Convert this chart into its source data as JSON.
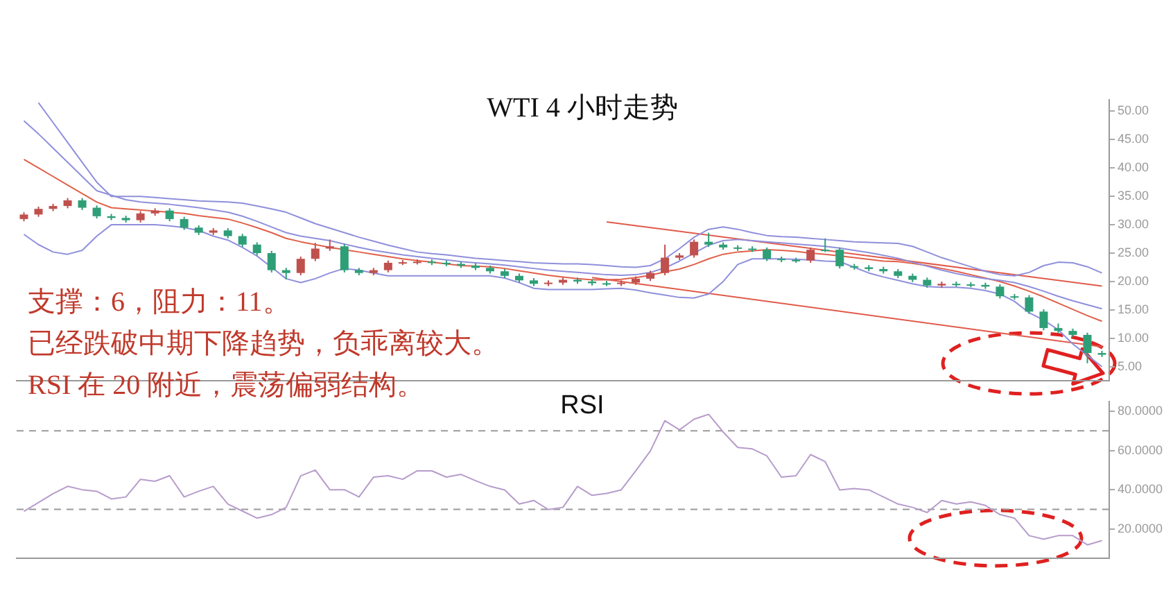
{
  "chart_data": [
    {
      "type": "candlestick",
      "title": "WTI 4 小时走势",
      "annotations": [
        "支撑：6，阻力：11。",
        "已经跌破中期下降趋势，负乖离较大。",
        "RSI 在 20 附近，震荡偏弱结构。"
      ],
      "categories": [
        null,
        null,
        null,
        null,
        null,
        null,
        null,
        null,
        null,
        null,
        null,
        null,
        null,
        null,
        null,
        null,
        null,
        null,
        null,
        null,
        null,
        null,
        null,
        null,
        null,
        null,
        null,
        null,
        null,
        null,
        null,
        null,
        null,
        null,
        null,
        null,
        null,
        null,
        null,
        null,
        null,
        null,
        null,
        null,
        null,
        null,
        null,
        null,
        null,
        null,
        null,
        null,
        null,
        null,
        null,
        null,
        null,
        null,
        null,
        null,
        null,
        null,
        null,
        null,
        null,
        null,
        null,
        null,
        null,
        null,
        null,
        null,
        null,
        null,
        null
      ],
      "ohlc": [
        [
          31,
          32.2,
          30.6,
          31.8
        ],
        [
          31.8,
          33.2,
          31.4,
          32.8
        ],
        [
          32.8,
          33.7,
          32.4,
          33.3
        ],
        [
          33.3,
          34.7,
          32.9,
          34.3
        ],
        [
          34.3,
          34.7,
          32.6,
          33
        ],
        [
          33,
          33.4,
          31.1,
          31.5
        ],
        [
          31.5,
          31.9,
          30.8,
          31.2
        ],
        [
          31.2,
          31.6,
          30.4,
          30.8
        ],
        [
          30.8,
          32.4,
          30.4,
          32
        ],
        [
          32,
          32.9,
          31.6,
          32.5
        ],
        [
          32.5,
          32.9,
          30.6,
          31
        ],
        [
          31,
          31.4,
          29.1,
          29.5
        ],
        [
          29.5,
          29.9,
          28.2,
          28.6
        ],
        [
          28.6,
          29.4,
          28.2,
          29
        ],
        [
          29,
          29.4,
          27.6,
          28
        ],
        [
          28,
          28.4,
          26.1,
          26.5
        ],
        [
          26.5,
          26.9,
          24.6,
          25
        ],
        [
          25,
          25.4,
          21.6,
          22
        ],
        [
          22,
          22.4,
          20.4,
          21.5
        ],
        [
          21.5,
          24.4,
          21.1,
          24
        ],
        [
          24,
          26.8,
          23.6,
          25.8
        ],
        [
          25.8,
          27.4,
          25.4,
          26.2
        ],
        [
          26.2,
          26.6,
          21.6,
          22
        ],
        [
          22,
          22.4,
          21.1,
          21.5
        ],
        [
          21.5,
          22.4,
          21.1,
          22
        ],
        [
          22,
          23.7,
          21.6,
          23.3
        ],
        [
          23.3,
          23.8,
          22.9,
          23.4
        ],
        [
          23.4,
          23.9,
          23,
          23.5
        ],
        [
          23.5,
          23.9,
          22.9,
          23.3
        ],
        [
          23.3,
          23.7,
          22.7,
          23.1
        ],
        [
          23.1,
          23.5,
          22.4,
          22.8
        ],
        [
          22.8,
          23.2,
          22,
          22.4
        ],
        [
          22.4,
          22.8,
          21.4,
          21.8
        ],
        [
          21.8,
          22.2,
          20.6,
          21
        ],
        [
          21,
          21.4,
          19.8,
          20.2
        ],
        [
          20.2,
          20.6,
          19.2,
          19.6
        ],
        [
          19.6,
          20.2,
          19.2,
          19.8
        ],
        [
          19.8,
          20.7,
          19.4,
          20.3
        ],
        [
          20.3,
          20.7,
          19.6,
          20
        ],
        [
          20,
          20.4,
          19.3,
          19.7
        ],
        [
          19.7,
          20.1,
          19.2,
          19.6
        ],
        [
          19.6,
          20.2,
          19.2,
          19.8
        ],
        [
          19.8,
          20.9,
          19.4,
          20.5
        ],
        [
          20.5,
          21.9,
          20.1,
          21.5
        ],
        [
          21.5,
          26.5,
          21.1,
          24.2
        ],
        [
          24.2,
          25,
          23.8,
          24.6
        ],
        [
          24.6,
          27.4,
          24.2,
          27
        ],
        [
          27,
          28.6,
          26.1,
          26.5
        ],
        [
          26.5,
          26.9,
          25.6,
          26
        ],
        [
          26,
          26.4,
          25.4,
          25.8
        ],
        [
          25.8,
          26.2,
          25.2,
          25.6
        ],
        [
          25.6,
          26,
          23.6,
          24
        ],
        [
          24,
          24.4,
          23.4,
          23.8
        ],
        [
          23.8,
          24.2,
          23.3,
          23.7
        ],
        [
          23.7,
          26,
          23.3,
          25.6
        ],
        [
          25.6,
          27.6,
          25.2,
          25.6
        ],
        [
          25.6,
          26,
          22.3,
          22.7
        ],
        [
          22.7,
          23.1,
          22.1,
          22.5
        ],
        [
          22.5,
          22.9,
          21.8,
          22.2
        ],
        [
          22.2,
          22.6,
          21.4,
          21.8
        ],
        [
          21.8,
          22.2,
          20.6,
          21
        ],
        [
          21,
          21.4,
          19.9,
          20.3
        ],
        [
          20.3,
          20.7,
          18.9,
          19.3
        ],
        [
          19.3,
          20,
          18.9,
          19.6
        ],
        [
          19.6,
          20,
          19.1,
          19.5
        ],
        [
          19.5,
          19.9,
          19,
          19.4
        ],
        [
          19.4,
          19.8,
          18.7,
          19.1
        ],
        [
          19.1,
          19.5,
          17,
          17.4
        ],
        [
          17.4,
          17.8,
          16.8,
          17.2
        ],
        [
          17.2,
          17.6,
          14.3,
          14.7
        ],
        [
          14.7,
          15.1,
          11.4,
          11.8
        ],
        [
          11.8,
          12.6,
          10.9,
          11.3
        ],
        [
          11.3,
          11.7,
          10.2,
          10.6
        ],
        [
          10.6,
          11,
          5.6,
          7.4
        ],
        [
          7.4,
          7.8,
          6.7,
          7.1
        ]
      ],
      "colors": [
        "#c0504d",
        "#c0504d",
        "#c0504d",
        "#c0504d",
        "#2e9e77",
        "#2e9e77",
        "#2e9e77",
        "#2e9e77",
        "#c0504d",
        "#c0504d",
        "#2e9e77",
        "#2e9e77",
        "#2e9e77",
        "#c0504d",
        "#2e9e77",
        "#2e9e77",
        "#2e9e77",
        "#2e9e77",
        "#2e9e77",
        "#c0504d",
        "#c0504d",
        "#c0504d",
        "#2e9e77",
        "#2e9e77",
        "#c0504d",
        "#c0504d",
        "#c0504d",
        "#c0504d",
        "#2e9e77",
        "#2e9e77",
        "#2e9e77",
        "#2e9e77",
        "#2e9e77",
        "#2e9e77",
        "#2e9e77",
        "#2e9e77",
        "#c0504d",
        "#c0504d",
        "#2e9e77",
        "#2e9e77",
        "#2e9e77",
        "#c0504d",
        "#c0504d",
        "#c0504d",
        "#c0504d",
        "#c0504d",
        "#c0504d",
        "#2e9e77",
        "#2e9e77",
        "#2e9e77",
        "#2e9e77",
        "#2e9e77",
        "#2e9e77",
        "#2e9e77",
        "#c0504d",
        "#2e9e77",
        "#2e9e77",
        "#2e9e77",
        "#2e9e77",
        "#2e9e77",
        "#2e9e77",
        "#2e9e77",
        "#2e9e77",
        "#c0504d",
        "#2e9e77",
        "#2e9e77",
        "#2e9e77",
        "#2e9e77",
        "#2e9e77",
        "#2e9e77",
        "#2e9e77",
        "#2e9e77",
        "#2e9e77",
        "#2e9e77",
        "#2e9e77"
      ],
      "series": [
        {
          "type": "line",
          "color": "#8f8fdc",
          "values": [
            null,
            51.5,
            48,
            44.5,
            41,
            37.5,
            35,
            35,
            35,
            34.8,
            34.6,
            34.4,
            34.2,
            34.1,
            34,
            33.8,
            33.3,
            32.8,
            32.2,
            31.2,
            30.2,
            29.4,
            28.6,
            27.8,
            27.1,
            26.4,
            25.8,
            25.2,
            24.9,
            24.7,
            24.4,
            24.1,
            23.9,
            23.7,
            23.5,
            23.3,
            23.2,
            23.1,
            23.1,
            23,
            22.8,
            22.6,
            22.5,
            22.8,
            24,
            25.8,
            27.8,
            29.2,
            29.6,
            29.2,
            28.6,
            28.1,
            27.9,
            27.8,
            27.6,
            27.4,
            27.2,
            27,
            26.9,
            26.8,
            26.7,
            26.2,
            25.2,
            24.2,
            23.4,
            22.6,
            21.8,
            21.2,
            21,
            21.6,
            22.8,
            23.4,
            23.3,
            22.6,
            21.5
          ]
        },
        {
          "type": "line",
          "color": "#8f8fdc",
          "values": [
            48.3,
            46,
            43.5,
            41,
            38.5,
            36,
            35.2,
            34.4,
            34,
            33.8,
            33.6,
            33.3,
            33,
            32.6,
            32.2,
            31.5,
            30.6,
            29.6,
            28.6,
            28,
            27.6,
            27.2,
            26.6,
            26,
            25.5,
            25.1,
            24.7,
            24.4,
            24.1,
            23.8,
            23.5,
            23.3,
            23.1,
            22.9,
            22.6,
            22.3,
            22,
            21.8,
            21.6,
            21.4,
            21.2,
            21.1,
            21.2,
            21.6,
            22.4,
            23.6,
            25,
            26.4,
            27.2,
            27.4,
            27.2,
            27,
            26.8,
            26.6,
            26.4,
            26.2,
            25.9,
            25.5,
            25.1,
            24.6,
            24.1,
            23.4,
            22.7,
            22,
            21.4,
            20.9,
            20.5,
            20.2,
            19.8,
            19.1,
            18.3,
            17.4,
            16.6,
            15.9,
            15.2
          ]
        },
        {
          "type": "line",
          "color": "#8f8fdc",
          "values": [
            28.3,
            26.5,
            25.2,
            24.8,
            25.5,
            28,
            30,
            30,
            30,
            30,
            29.8,
            29.5,
            29,
            28,
            27.3,
            26,
            24.5,
            22.5,
            20.5,
            19.8,
            20.5,
            21.5,
            22.3,
            22,
            21.5,
            21,
            21,
            21,
            21,
            21,
            21,
            21,
            21,
            20.6,
            19.8,
            18.8,
            18.6,
            18.6,
            18.6,
            18.6,
            18.7,
            18.8,
            18.5,
            18,
            17.6,
            17.2,
            17.1,
            17.8,
            20,
            23,
            24,
            24,
            24,
            23.9,
            23.8,
            23.6,
            23.5,
            22.5,
            21.5,
            20.8,
            20.2,
            19.6,
            19.1,
            19,
            19,
            18.8,
            18.4,
            17.8,
            16.5,
            14.5,
            13.2,
            11.5,
            9,
            7,
            5
          ]
        },
        {
          "type": "line",
          "color": "#e0604a",
          "values": [
            41.5,
            40,
            38.5,
            37,
            35.5,
            34,
            33,
            32.8,
            32.6,
            32.4,
            32.2,
            32,
            31.6,
            31.3,
            31,
            30.3,
            29.5,
            28.6,
            27.6,
            27,
            26.5,
            26,
            25.6,
            25.2,
            24.8,
            24.4,
            24,
            23.7,
            23.4,
            23.1,
            22.8,
            22.7,
            22.6,
            22.3,
            21.9,
            21.5,
            21.1,
            20.8,
            20.5,
            20.3,
            20.3,
            20.4,
            20.7,
            21.1,
            21.7,
            22.2,
            23,
            24,
            24.8,
            25.2,
            25.4,
            25.6,
            25.5,
            25.3,
            25,
            24.8,
            24.5,
            24.2,
            23.9,
            23.6,
            23.5,
            23.2,
            22.8,
            22.3,
            21.8,
            21.2,
            20.6,
            20,
            19.2,
            18.3,
            17.3,
            16.2,
            15.1,
            14,
            13
          ]
        },
        {
          "type": "line",
          "color": "#e05a4a",
          "values": [
            null,
            null,
            null,
            null,
            null,
            null,
            null,
            null,
            null,
            null,
            null,
            null,
            null,
            null,
            null,
            null,
            null,
            null,
            null,
            null,
            null,
            null,
            null,
            null,
            null,
            null,
            null,
            null,
            null,
            null,
            null,
            null,
            null,
            null,
            null,
            null,
            null,
            null,
            null,
            null,
            30.5,
            null,
            null,
            null,
            null,
            null,
            null,
            null,
            null,
            null,
            null,
            null,
            null,
            null,
            null,
            null,
            null,
            null,
            null,
            null,
            null,
            null,
            null,
            null,
            null,
            null,
            null,
            null,
            null,
            null,
            null,
            null,
            null,
            null,
            19.2
          ]
        },
        {
          "type": "line",
          "color": "#e05a4a",
          "values": [
            null,
            null,
            null,
            null,
            null,
            null,
            null,
            null,
            null,
            null,
            null,
            null,
            null,
            null,
            null,
            null,
            null,
            null,
            null,
            null,
            null,
            null,
            null,
            null,
            null,
            null,
            null,
            null,
            null,
            null,
            null,
            null,
            null,
            null,
            null,
            null,
            null,
            null,
            null,
            20.7,
            null,
            null,
            null,
            null,
            null,
            null,
            null,
            null,
            null,
            null,
            null,
            null,
            null,
            null,
            null,
            null,
            null,
            null,
            null,
            null,
            null,
            null,
            null,
            null,
            null,
            null,
            null,
            null,
            null,
            null,
            null,
            null,
            null,
            null,
            8.5
          ]
        }
      ],
      "ylim": [
        2.5,
        52
      ],
      "yticks": [
        {
          "value": 5,
          "label": "5.00"
        },
        {
          "value": 10,
          "label": "10.00"
        },
        {
          "value": 15,
          "label": "15.00"
        },
        {
          "value": 20,
          "label": "20.00"
        },
        {
          "value": 25,
          "label": "25.00"
        },
        {
          "value": 30,
          "label": "30.00"
        },
        {
          "value": 35,
          "label": "35.00"
        },
        {
          "value": 40,
          "label": "40.00"
        },
        {
          "value": 45,
          "label": "45.00"
        },
        {
          "value": 50,
          "label": "50.00"
        }
      ],
      "tick_labels": "y"
    },
    {
      "type": "line",
      "title": "RSI",
      "categories": [
        null,
        null,
        null,
        null,
        null,
        null,
        null,
        null,
        null,
        null,
        null,
        null,
        null,
        null,
        null,
        null,
        null,
        null,
        null,
        null,
        null,
        null,
        null,
        null,
        null,
        null,
        null,
        null,
        null,
        null,
        null,
        null,
        null,
        null,
        null,
        null,
        null,
        null,
        null,
        null,
        null,
        null,
        null,
        null,
        null,
        null,
        null,
        null,
        null,
        null,
        null,
        null,
        null,
        null,
        null,
        null,
        null,
        null,
        null,
        null,
        null,
        null,
        null,
        null,
        null,
        null,
        null,
        null,
        null,
        null,
        null,
        null,
        null,
        null,
        null
      ],
      "series": [
        {
          "color": "#b79ccb",
          "values": [
            29,
            33.5,
            38,
            41.7,
            40,
            39.2,
            35.3,
            36.3,
            45.3,
            44.3,
            47.1,
            36.3,
            39.2,
            41.7,
            32.7,
            29.1,
            25.5,
            27.3,
            31,
            47.1,
            50,
            40,
            40,
            36.3,
            46.4,
            47.1,
            45.3,
            49.6,
            49.6,
            46.4,
            47.8,
            44.6,
            41.7,
            39.9,
            32.7,
            34.5,
            29.9,
            31,
            41.7,
            37.1,
            38.1,
            39.9,
            49.6,
            59.7,
            75.2,
            70.5,
            75.9,
            78.4,
            69.4,
            61.5,
            60.8,
            57.2,
            46.4,
            47.1,
            57.9,
            54.3,
            39.9,
            40.6,
            39.9,
            36.3,
            32.7,
            31,
            28.4,
            34.5,
            32.7,
            33.8,
            32,
            27.3,
            25.5,
            16.6,
            14.8,
            16.6,
            16.6,
            11.9,
            14.1
          ]
        }
      ],
      "ylim": [
        5,
        85
      ],
      "yticks": [
        {
          "value": 20,
          "label": "20.0000"
        },
        {
          "value": 40,
          "label": "40.0000"
        },
        {
          "value": 60,
          "label": "60.0000"
        },
        {
          "value": 80,
          "label": "80.0000"
        }
      ],
      "ref_lines": [
        {
          "axis": "y",
          "value": 70,
          "color": "#9a9a9a",
          "line_style": "dashed"
        },
        {
          "axis": "y",
          "value": 30,
          "color": "#9a9a9a",
          "line_style": "dashed"
        }
      ],
      "tick_labels": "y"
    }
  ]
}
